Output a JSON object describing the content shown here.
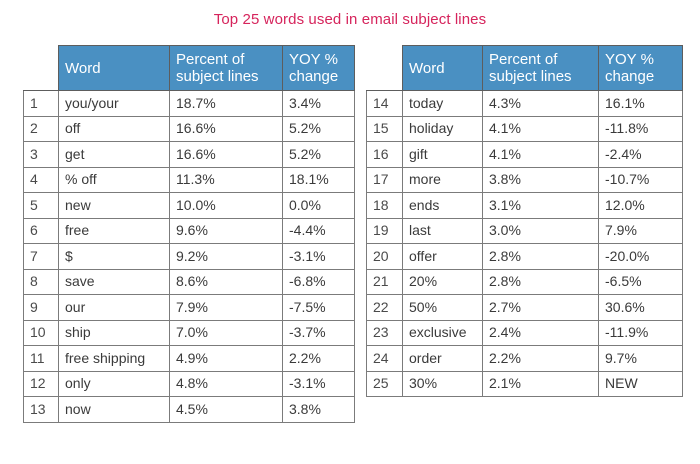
{
  "title": "Top 25 words used in email subject lines",
  "headers": {
    "word": "Word",
    "percent": "Percent of subject lines",
    "yoy": "YOY % change"
  },
  "left_rows": [
    {
      "rank": "1",
      "word": "you/your",
      "percent": "18.7%",
      "yoy": "3.4%"
    },
    {
      "rank": "2",
      "word": "off",
      "percent": "16.6%",
      "yoy": "5.2%"
    },
    {
      "rank": "3",
      "word": "get",
      "percent": "16.6%",
      "yoy": "5.2%"
    },
    {
      "rank": "4",
      "word": "% off",
      "percent": "11.3%",
      "yoy": "18.1%"
    },
    {
      "rank": "5",
      "word": "new",
      "percent": "10.0%",
      "yoy": "0.0%"
    },
    {
      "rank": "6",
      "word": "free",
      "percent": "9.6%",
      "yoy": "-4.4%"
    },
    {
      "rank": "7",
      "word": "$",
      "percent": "9.2%",
      "yoy": "-3.1%"
    },
    {
      "rank": "8",
      "word": "save",
      "percent": "8.6%",
      "yoy": "-6.8%"
    },
    {
      "rank": "9",
      "word": "our",
      "percent": "7.9%",
      "yoy": "-7.5%"
    },
    {
      "rank": "10",
      "word": "ship",
      "percent": "7.0%",
      "yoy": "-3.7%"
    },
    {
      "rank": "11",
      "word": "free shipping",
      "percent": "4.9%",
      "yoy": "2.2%"
    },
    {
      "rank": "12",
      "word": "only",
      "percent": "4.8%",
      "yoy": "-3.1%"
    },
    {
      "rank": "13",
      "word": "now",
      "percent": "4.5%",
      "yoy": "3.8%"
    }
  ],
  "right_rows": [
    {
      "rank": "14",
      "word": "today",
      "percent": "4.3%",
      "yoy": "16.1%"
    },
    {
      "rank": "15",
      "word": "holiday",
      "percent": "4.1%",
      "yoy": "-11.8%"
    },
    {
      "rank": "16",
      "word": "gift",
      "percent": "4.1%",
      "yoy": "-2.4%"
    },
    {
      "rank": "17",
      "word": "more",
      "percent": "3.8%",
      "yoy": "-10.7%"
    },
    {
      "rank": "18",
      "word": "ends",
      "percent": "3.1%",
      "yoy": "12.0%"
    },
    {
      "rank": "19",
      "word": "last",
      "percent": "3.0%",
      "yoy": "7.9%"
    },
    {
      "rank": "20",
      "word": "offer",
      "percent": "2.8%",
      "yoy": "-20.0%"
    },
    {
      "rank": "21",
      "word": "20%",
      "percent": "2.8%",
      "yoy": "-6.5%"
    },
    {
      "rank": "22",
      "word": "50%",
      "percent": "2.7%",
      "yoy": "30.6%"
    },
    {
      "rank": "23",
      "word": "exclusive",
      "percent": "2.4%",
      "yoy": "-11.9%"
    },
    {
      "rank": "24",
      "word": "order",
      "percent": "2.2%",
      "yoy": "9.7%"
    },
    {
      "rank": "25",
      "word": "30%",
      "percent": "2.1%",
      "yoy": "NEW"
    }
  ]
}
